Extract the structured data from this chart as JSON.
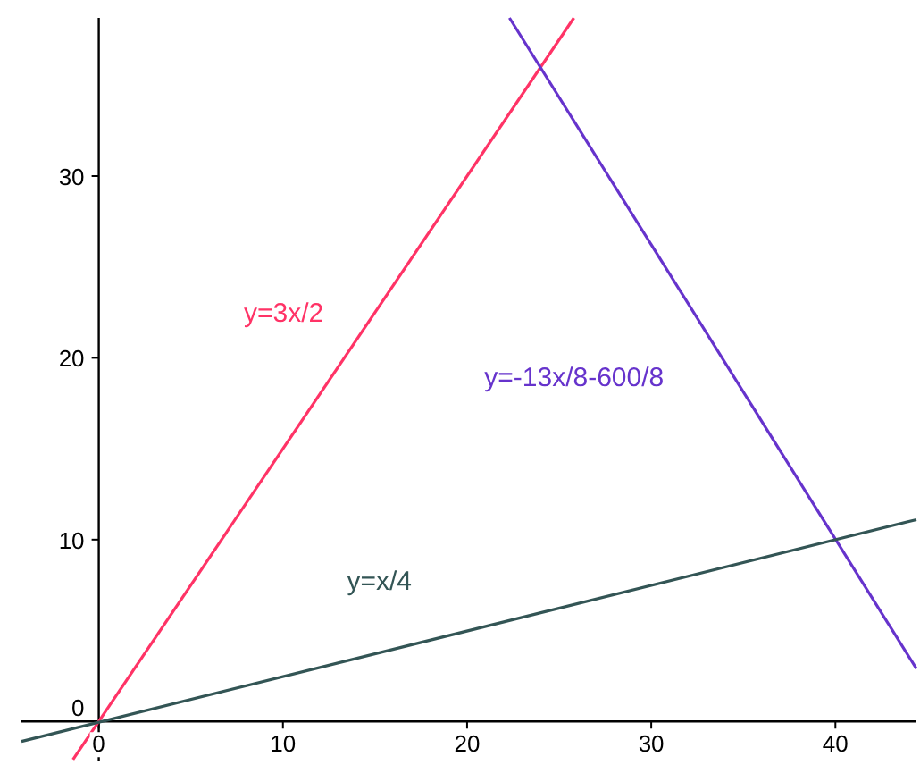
{
  "chart_data": {
    "type": "line",
    "xlim": [
      -4.2,
      44.4
    ],
    "ylim": [
      -2.2,
      38.7
    ],
    "xticks": [
      0,
      10,
      20,
      30,
      40
    ],
    "yticks": [
      0,
      10,
      20,
      30
    ],
    "grid": false,
    "marker": "none",
    "line_style": "solid",
    "series": [
      {
        "name": "y=3x/2",
        "color": "#ff3366",
        "x": [
          -1.4,
          25.8
        ],
        "values": [
          -2.1,
          38.7
        ]
      },
      {
        "name": "y=-13x/8-600/8",
        "color": "#6633cc",
        "x": [
          22.3,
          44.4
        ],
        "values": [
          38.7,
          2.9
        ]
      },
      {
        "name": "y=x/4",
        "color": "#335555",
        "x": [
          -4.2,
          44.4
        ],
        "values": [
          -1.1,
          11.1
        ]
      }
    ]
  }
}
